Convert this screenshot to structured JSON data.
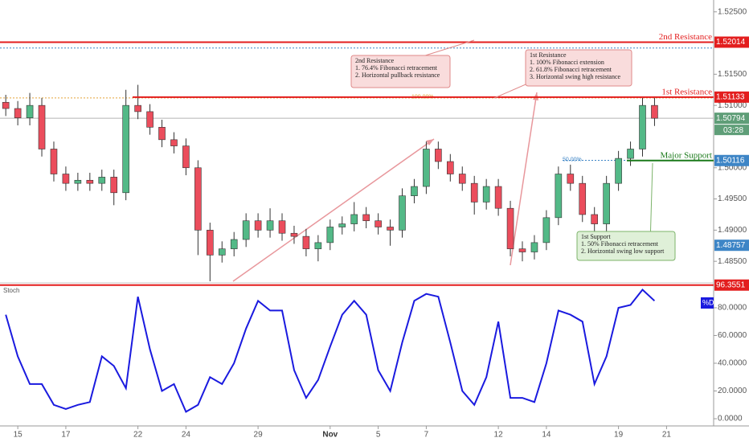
{
  "chart_data": [
    {
      "type": "candlestick",
      "x": [
        -0.5,
        0,
        0.5,
        1,
        1.5,
        2,
        2.5,
        3,
        3.5,
        4,
        4.5,
        5,
        5.5,
        6,
        6.5,
        7,
        7.5,
        8,
        8.5,
        9,
        9.5,
        10,
        10.5,
        11,
        11.5,
        12,
        12.5,
        13,
        13.5,
        14,
        14.5,
        15,
        15.5,
        16,
        16.5,
        17,
        17.5,
        18,
        18.5,
        19,
        19.5,
        20,
        20.5,
        21,
        21.5,
        22,
        22.5,
        23,
        23.5,
        24,
        24.5,
        25,
        25.5,
        26,
        26.5
      ],
      "open": [
        1.5105,
        1.5095,
        1.508,
        1.51,
        1.503,
        1.499,
        1.4975,
        1.498,
        1.4975,
        1.4985,
        1.496,
        1.51,
        1.509,
        1.5065,
        1.5045,
        1.5035,
        1.5,
        1.49,
        1.486,
        1.487,
        1.4885,
        1.4915,
        1.49,
        1.4915,
        1.4895,
        1.489,
        1.487,
        1.488,
        1.4905,
        1.491,
        1.4925,
        1.4915,
        1.4905,
        1.49,
        1.4955,
        1.497,
        1.503,
        1.501,
        1.499,
        1.4975,
        1.4945,
        1.497,
        1.4935,
        1.487,
        1.4865,
        1.488,
        1.492,
        1.499,
        1.4975,
        1.4925,
        1.491,
        1.4975,
        1.5015,
        1.503,
        1.51
      ],
      "high": [
        1.5117,
        1.5107,
        1.512,
        1.5112,
        1.5042,
        1.5002,
        1.4992,
        1.4992,
        1.4997,
        1.4997,
        1.5125,
        1.5133,
        1.5102,
        1.5077,
        1.5057,
        1.5047,
        1.5012,
        1.4912,
        1.4882,
        1.4897,
        1.4927,
        1.4927,
        1.4935,
        1.4927,
        1.4907,
        1.4902,
        1.4892,
        1.4917,
        1.4922,
        1.4945,
        1.4937,
        1.4927,
        1.4917,
        1.4967,
        1.4982,
        1.5042,
        1.5042,
        1.5022,
        1.5002,
        1.4987,
        1.4982,
        1.4982,
        1.4947,
        1.4882,
        1.4892,
        1.4932,
        1.5002,
        1.5005,
        1.4987,
        1.4937,
        1.4987,
        1.5027,
        1.5042,
        1.5112,
        1.5112
      ],
      "low": [
        1.5083,
        1.5068,
        1.5068,
        1.5018,
        1.4978,
        1.4963,
        1.4963,
        1.4963,
        1.4963,
        1.494,
        1.4948,
        1.5078,
        1.5053,
        1.5033,
        1.5023,
        1.4988,
        1.486,
        1.4818,
        1.4848,
        1.4858,
        1.4873,
        1.4888,
        1.4888,
        1.4883,
        1.4878,
        1.4858,
        1.485,
        1.4868,
        1.4893,
        1.4898,
        1.4903,
        1.4893,
        1.4875,
        1.4888,
        1.4943,
        1.4958,
        1.4998,
        1.4978,
        1.4963,
        1.4925,
        1.4933,
        1.4923,
        1.4858,
        1.485,
        1.4853,
        1.4868,
        1.4908,
        1.4963,
        1.4913,
        1.4898,
        1.4898,
        1.4963,
        1.5003,
        1.5018,
        1.5067
      ],
      "close": [
        1.5095,
        1.508,
        1.51,
        1.503,
        1.499,
        1.4975,
        1.498,
        1.4975,
        1.4985,
        1.496,
        1.51,
        1.509,
        1.5065,
        1.5045,
        1.5035,
        1.5,
        1.49,
        1.486,
        1.487,
        1.4885,
        1.4915,
        1.49,
        1.4915,
        1.4895,
        1.489,
        1.487,
        1.488,
        1.4905,
        1.491,
        1.4925,
        1.4915,
        1.4905,
        1.49,
        1.4955,
        1.497,
        1.503,
        1.501,
        1.499,
        1.4975,
        1.4945,
        1.497,
        1.4935,
        1.487,
        1.4865,
        1.488,
        1.492,
        1.499,
        1.4975,
        1.4925,
        1.491,
        1.4975,
        1.5015,
        1.503,
        1.51,
        1.50794
      ],
      "up_color": "#53b987",
      "down_color": "#eb4d5c",
      "xlim": [
        -0.74,
        28.96
      ],
      "xticks": [
        {
          "value": 0,
          "label": "15"
        },
        {
          "value": 2,
          "label": "17"
        },
        {
          "value": 5,
          "label": "22"
        },
        {
          "value": 7,
          "label": "24"
        },
        {
          "value": 10,
          "label": "29"
        },
        {
          "value": 13,
          "label": "Nov"
        },
        {
          "value": 15,
          "label": "5"
        },
        {
          "value": 17,
          "label": "7"
        },
        {
          "value": 20,
          "label": "12"
        },
        {
          "value": 22,
          "label": "14"
        },
        {
          "value": 25,
          "label": "19"
        },
        {
          "value": 27,
          "label": "21"
        }
      ],
      "ylim": [
        1.4818,
        1.5269
      ],
      "yticks": [
        {
          "value": 1.525,
          "label": "1.52500"
        },
        {
          "value": 1.515,
          "label": "1.51500"
        },
        {
          "value": 1.51,
          "label": "1.51000"
        },
        {
          "value": 1.5,
          "label": "1.50000"
        },
        {
          "value": 1.495,
          "label": "1.49500"
        },
        {
          "value": 1.49,
          "label": "1.49000"
        },
        {
          "value": 1.485,
          "label": "1.48500"
        }
      ],
      "grid": false,
      "levels": [
        {
          "label": "2nd Resistance",
          "value": 1.52014,
          "color": "#e31e1e"
        },
        {
          "label": "1st Resistance",
          "value": 1.51133,
          "color": "#e31e1e"
        },
        {
          "label": "Major Support",
          "value": 1.50116,
          "color": "#1b7a1b"
        }
      ],
      "fib_levels": [
        {
          "value": 1.5192
        },
        {
          "label": "100.00%",
          "value": 1.5112
        },
        {
          "label": "50.00%",
          "value": 1.5012
        }
      ],
      "price_markers": [
        {
          "value": 1.50116,
          "color": "#3d85c6"
        },
        {
          "value": 1.48757,
          "color": "#3d85c6"
        }
      ],
      "last_price": 1.50794,
      "last_color": "#5f9e78",
      "countdown": "03:28",
      "annotations": [
        {
          "lines": [
            "2nd Resistance",
            "1. 76.4% Fibonacci retracement",
            "2. Horizontal pullback resistance"
          ],
          "color": "#e08a8a"
        },
        {
          "lines": [
            "1st Resistance",
            "1. 100% Fibonacci extension",
            "2. 61.8% Fibonacci retracement",
            "3. Horizontal swing high resistance"
          ],
          "color": "#e08a8a"
        },
        {
          "lines": [
            "1st Support",
            "1. 50% Fibonacci retracement",
            "2. Horizontal swing low support"
          ],
          "color": "#7cb36a"
        }
      ]
    },
    {
      "type": "line",
      "title": "Stoch",
      "x": [
        -0.5,
        0,
        0.5,
        1,
        1.5,
        2,
        2.5,
        3,
        3.5,
        4,
        4.5,
        5,
        5.5,
        6,
        6.5,
        7,
        7.5,
        8,
        8.5,
        9,
        9.5,
        10,
        10.5,
        11,
        11.5,
        12,
        12.5,
        13,
        13.5,
        14,
        14.5,
        15,
        15.5,
        16,
        16.5,
        17,
        17.5,
        18,
        18.5,
        19,
        19.5,
        20,
        20.5,
        21,
        21.5,
        22,
        22.5,
        23,
        23.5,
        24,
        24.5,
        25,
        25.5,
        26,
        26.5
      ],
      "series": [
        {
          "name": "%D",
          "color": "#1a1adf",
          "values": [
            75,
            45,
            25,
            25,
            10,
            7,
            10,
            12,
            45,
            38,
            22,
            88,
            50,
            20,
            25,
            5,
            10,
            30,
            25,
            40,
            65,
            85,
            78,
            78,
            35,
            15,
            28,
            52,
            75,
            85,
            75,
            35,
            20,
            55,
            85,
            90,
            88,
            55,
            20,
            10,
            30,
            70,
            15,
            15,
            12,
            40,
            78,
            75,
            70,
            25,
            45,
            80,
            82,
            93,
            85
          ]
        }
      ],
      "xlim": [
        -0.74,
        28.96
      ],
      "ylim": [
        -5.2,
        96.2
      ],
      "yticks": [
        {
          "value": 80,
          "label": "80.0000"
        },
        {
          "value": 60,
          "label": "60.0000"
        },
        {
          "value": 40,
          "label": "40.0000"
        },
        {
          "value": 20,
          "label": "20.0000"
        },
        {
          "value": 0,
          "label": "0.0000"
        }
      ],
      "level": 96.3551,
      "level_color": "#e31e1e"
    }
  ]
}
